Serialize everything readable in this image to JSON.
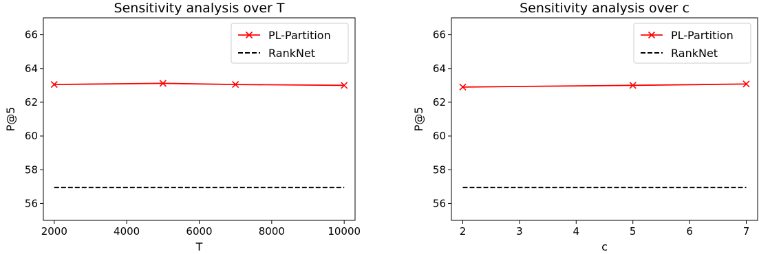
{
  "colors": {
    "pl_partition": "#ff0000",
    "ranknet": "#000000",
    "axes": "#000000",
    "background": "#ffffff"
  },
  "chart_data": [
    {
      "type": "line",
      "title": "Sensitivity analysis over T",
      "xlabel": "T",
      "ylabel": "P@5",
      "xlim": [
        1700,
        10300
      ],
      "ylim": [
        55,
        67
      ],
      "xticks": [
        2000,
        4000,
        6000,
        8000,
        10000
      ],
      "yticks": [
        56,
        58,
        60,
        62,
        64,
        66
      ],
      "grid": false,
      "legend_position": "top-right",
      "series": [
        {
          "name": "PL-Partition",
          "style": "solid-x-markers",
          "color": "#ff0000",
          "x": [
            2000,
            5000,
            7000,
            10000
          ],
          "y": [
            63.05,
            63.12,
            63.05,
            63.0
          ]
        },
        {
          "name": "RankNet",
          "style": "dashed",
          "color": "#000000",
          "x": [
            2000,
            10000
          ],
          "y": [
            56.95,
            56.95
          ]
        }
      ]
    },
    {
      "type": "line",
      "title": "Sensitivity analysis over c",
      "xlabel": "c",
      "ylabel": "P@5",
      "xlim": [
        1.8,
        7.2
      ],
      "ylim": [
        55,
        67
      ],
      "xticks": [
        2,
        3,
        4,
        5,
        6,
        7
      ],
      "yticks": [
        56,
        58,
        60,
        62,
        64,
        66
      ],
      "grid": false,
      "legend_position": "top-right",
      "series": [
        {
          "name": "PL-Partition",
          "style": "solid-x-markers",
          "color": "#ff0000",
          "x": [
            2,
            5,
            7
          ],
          "y": [
            62.9,
            63.0,
            63.08
          ]
        },
        {
          "name": "RankNet",
          "style": "dashed",
          "color": "#000000",
          "x": [
            2,
            7
          ],
          "y": [
            56.95,
            56.95
          ]
        }
      ]
    }
  ]
}
